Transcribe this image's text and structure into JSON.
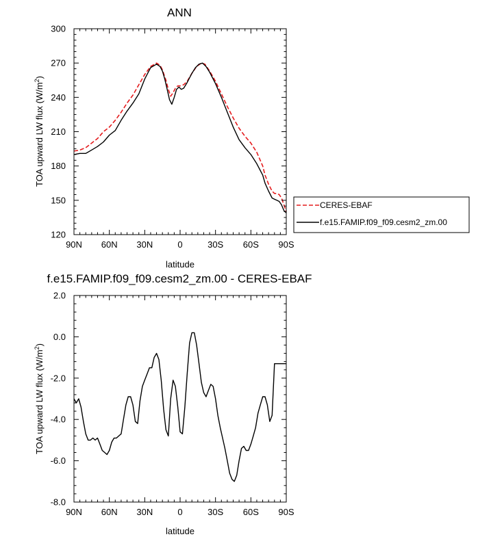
{
  "chart_data": [
    {
      "type": "line",
      "title": "ANN",
      "xlabel": "latitude",
      "ylabel": "TOA upward LW flux (W/m",
      "ylabel_sup": "2",
      "ylabel_tail": ")",
      "xlim": [
        90,
        -90
      ],
      "ylim": [
        120,
        300
      ],
      "xticks": [
        90,
        60,
        30,
        0,
        -30,
        -60,
        -90
      ],
      "xtick_labels": [
        "90N",
        "60N",
        "30N",
        "0",
        "30S",
        "60S",
        "90S"
      ],
      "yticks": [
        120,
        150,
        180,
        210,
        240,
        270,
        300
      ],
      "ytick_labels": [
        "120",
        "150",
        "180",
        "210",
        "240",
        "270",
        "300"
      ],
      "legend_position": "right",
      "series": [
        {
          "name": "CERES-EBAF",
          "color": "#e41a1c",
          "dash": "dashed",
          "x": [
            90,
            85,
            80,
            75,
            70,
            65,
            60,
            55,
            50,
            45,
            40,
            35,
            30,
            25,
            20,
            17,
            15,
            12,
            10,
            8,
            6,
            4,
            2,
            0,
            -3,
            -6,
            -10,
            -14,
            -18,
            -21,
            -25,
            -30,
            -35,
            -40,
            -45,
            -50,
            -55,
            -60,
            -65,
            -70,
            -72,
            -75,
            -78,
            -80,
            -82,
            -84,
            -86,
            -88,
            -90
          ],
          "y": [
            193,
            194,
            196,
            200,
            204,
            210,
            214,
            220,
            227,
            235,
            242,
            251,
            260,
            267,
            270,
            268,
            264,
            255,
            247,
            241,
            244,
            248,
            250,
            250,
            251,
            254,
            261,
            267,
            270,
            269,
            263,
            254,
            243,
            232,
            222,
            213,
            206,
            200,
            192,
            180,
            172,
            164,
            158,
            156,
            156,
            155,
            152,
            146,
            140
          ]
        },
        {
          "name": "f.e15.FAMIP.f09_f09.cesm2_zm.00",
          "color": "#000000",
          "dash": "solid",
          "x": [
            90,
            85,
            80,
            75,
            70,
            65,
            60,
            55,
            50,
            45,
            40,
            35,
            30,
            25,
            20,
            17,
            15,
            13,
            11,
            9,
            7,
            5,
            3,
            1,
            -1,
            -3,
            -6,
            -10,
            -13,
            -16,
            -19,
            -22,
            -25,
            -30,
            -35,
            -40,
            -45,
            -50,
            -55,
            -60,
            -65,
            -70,
            -72,
            -75,
            -78,
            -80,
            -82,
            -84,
            -86,
            -88,
            -90
          ],
          "y": [
            190,
            191,
            191,
            194,
            197,
            201,
            207,
            211,
            220,
            228,
            235,
            243,
            256,
            266,
            269,
            267,
            263,
            256,
            247,
            238,
            234,
            240,
            247,
            249,
            247,
            248,
            253,
            261,
            266,
            269,
            270,
            267,
            262,
            252,
            240,
            227,
            214,
            203,
            196,
            190,
            182,
            172,
            165,
            158,
            152,
            151,
            150,
            149,
            146,
            141,
            139
          ]
        }
      ]
    },
    {
      "type": "line",
      "title": "f.e15.FAMIP.f09_f09.cesm2_zm.00 - CERES-EBAF",
      "xlabel": "latitude",
      "ylabel": "TOA upward LW flux (W/m",
      "ylabel_sup": "2",
      "ylabel_tail": ")",
      "xlim": [
        90,
        -90
      ],
      "ylim": [
        -8.0,
        2.0
      ],
      "xticks": [
        90,
        60,
        30,
        0,
        -30,
        -60,
        -90
      ],
      "xtick_labels": [
        "90N",
        "60N",
        "30N",
        "0",
        "30S",
        "60S",
        "90S"
      ],
      "yticks": [
        -8.0,
        -6.0,
        -4.0,
        -2.0,
        0.0,
        2.0
      ],
      "ytick_labels": [
        "-8.0",
        "-6.0",
        "-4.0",
        "-2.0",
        "0.0",
        "2.0"
      ],
      "series": [
        {
          "color": "#000000",
          "dash": "solid",
          "x": [
            90,
            88,
            86,
            84,
            82,
            80,
            78,
            76,
            74,
            72,
            70,
            68,
            66,
            64,
            62,
            60,
            58,
            56,
            54,
            52,
            50,
            48,
            46,
            44,
            42,
            40,
            38,
            36,
            34,
            32,
            30,
            28,
            26,
            24,
            22,
            20,
            18,
            16,
            14,
            12,
            10,
            8,
            6,
            4,
            2,
            0,
            -2,
            -4,
            -6,
            -8,
            -10,
            -12,
            -14,
            -16,
            -18,
            -20,
            -22,
            -24,
            -26,
            -28,
            -30,
            -32,
            -34,
            -36,
            -38,
            -40,
            -42,
            -44,
            -46,
            -48,
            -50,
            -52,
            -54,
            -56,
            -58,
            -60,
            -62,
            -64,
            -66,
            -68,
            -70,
            -72,
            -74,
            -76,
            -78,
            -80,
            -82,
            -84,
            -86,
            -88,
            -90
          ],
          "y": [
            -3.0,
            -3.2,
            -3.0,
            -3.4,
            -4.1,
            -4.7,
            -5.0,
            -5.0,
            -4.9,
            -5.0,
            -4.9,
            -5.2,
            -5.5,
            -5.6,
            -5.7,
            -5.5,
            -5.1,
            -4.9,
            -4.9,
            -4.8,
            -4.7,
            -4.0,
            -3.3,
            -2.9,
            -2.9,
            -3.3,
            -4.1,
            -4.2,
            -3.1,
            -2.4,
            -2.1,
            -1.8,
            -1.5,
            -1.5,
            -1.0,
            -0.8,
            -1.1,
            -2.1,
            -3.5,
            -4.5,
            -4.8,
            -3.0,
            -2.1,
            -2.4,
            -3.4,
            -4.6,
            -4.7,
            -3.4,
            -1.8,
            -0.3,
            0.2,
            0.2,
            -0.4,
            -1.3,
            -2.2,
            -2.7,
            -2.9,
            -2.6,
            -2.3,
            -2.4,
            -3.0,
            -3.8,
            -4.4,
            -4.9,
            -5.4,
            -6.0,
            -6.6,
            -6.9,
            -7.0,
            -6.7,
            -6.0,
            -5.4,
            -5.3,
            -5.5,
            -5.5,
            -5.2,
            -4.8,
            -4.4,
            -3.7,
            -3.3,
            -2.9,
            -2.9,
            -3.3,
            -4.1,
            -3.8,
            -1.3,
            -1.3,
            -1.3,
            -1.3,
            -1.3,
            -1.3
          ]
        }
      ]
    }
  ]
}
